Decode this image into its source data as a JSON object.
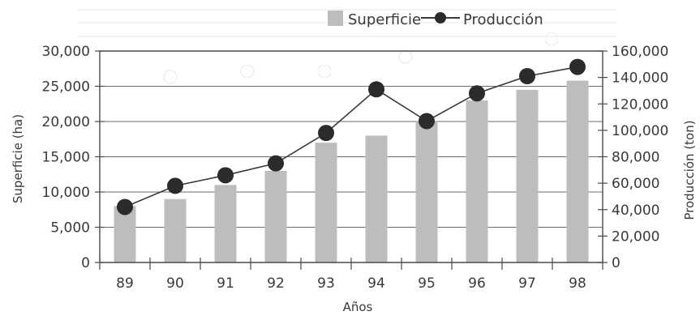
{
  "chart_data": {
    "type": "bar+line",
    "categories": [
      "89",
      "90",
      "91",
      "92",
      "93",
      "94",
      "95",
      "96",
      "97",
      "98"
    ],
    "series": [
      {
        "name": "Superficie",
        "type": "bar",
        "axis": "left",
        "values": [
          8000,
          9000,
          11000,
          13000,
          17000,
          18000,
          20000,
          23000,
          24500,
          25800
        ]
      },
      {
        "name": "Producción",
        "type": "line",
        "axis": "right",
        "values": [
          42000,
          58000,
          66000,
          75000,
          98000,
          131000,
          107000,
          128000,
          141000,
          148000
        ]
      }
    ],
    "xlabel": "Años",
    "ylabel_left": "Superficie (ha)",
    "ylabel_right": "Producción (ton)",
    "yticks_left": [
      "0",
      "5,000",
      "10,000",
      "15,000",
      "20,000",
      "25,000",
      "30,000"
    ],
    "yticks_right": [
      "0",
      "20,000",
      "40,000",
      "60,000",
      "80,000",
      "100,000",
      "120,000",
      "140,000",
      "160,000"
    ],
    "ylim_left": [
      0,
      30000
    ],
    "ylim_right": [
      0,
      160000
    ],
    "grid": "horizontal",
    "legend_position": "top",
    "colors": {
      "bar": "#bdbdbd",
      "line": "#3a3a3a",
      "marker": "#2b2b2b",
      "axis": "#4a4a4a"
    }
  }
}
